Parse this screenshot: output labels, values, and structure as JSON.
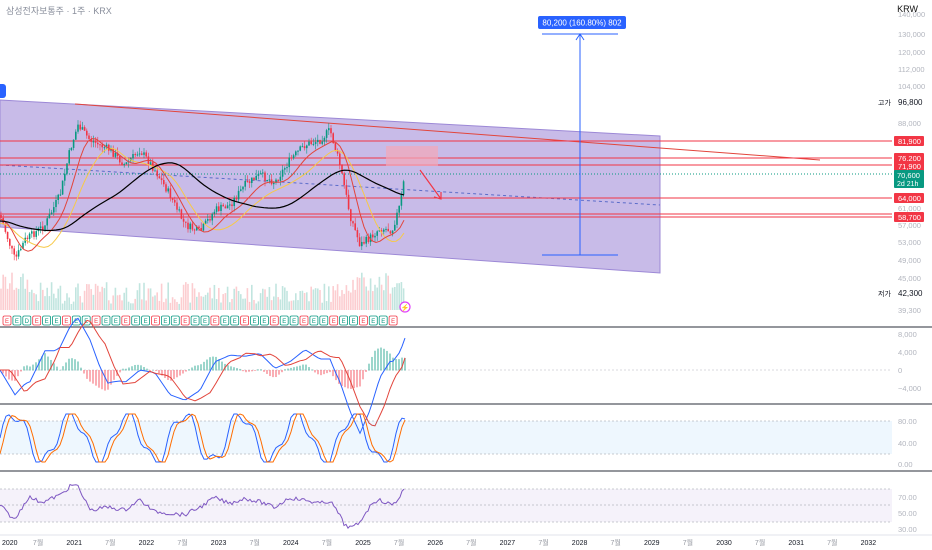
{
  "header": {
    "symbol_title": "삼성전자보통주 · 1주 · KRX",
    "currency": "KRW"
  },
  "price_scale": {
    "ticks": [
      "140,000",
      "130,000",
      "120,000",
      "112,000",
      "104,000",
      "88,000",
      "78,000",
      "70,000",
      "64,000",
      "61,000",
      "57,000",
      "53,000",
      "49,000",
      "45,000",
      "39,300"
    ],
    "high_label": "고가",
    "high_value": "96,800",
    "low_label": "저가",
    "low_value": "42,300",
    "level_labels": [
      {
        "value": "81,900",
        "color": "#f23645"
      },
      {
        "value": "76,200",
        "color": "#f23645"
      },
      {
        "value": "71,900",
        "color": "#f23645"
      },
      {
        "value": "64,000",
        "color": "#f23645"
      },
      {
        "value": "58,700",
        "color": "#f23645"
      }
    ],
    "current_price": "70,600",
    "countdown": "2d 21h",
    "current_color": "#089981"
  },
  "measure": {
    "label": "80,200 (160.80%) 802"
  },
  "macd_scale": [
    "8,000",
    "4,000",
    "0",
    "−4,000"
  ],
  "stoch_scale": [
    "80.00",
    "40.00",
    "0.00"
  ],
  "rsi_scale": [
    "70.00",
    "50.00",
    "30.00"
  ],
  "time_axis": [
    "2020",
    "7월",
    "2021",
    "7월",
    "2022",
    "7월",
    "2023",
    "7월",
    "2024",
    "7월",
    "2025",
    "7월",
    "2026",
    "7월",
    "2027",
    "7월",
    "2028",
    "7월",
    "2029",
    "7월",
    "2030",
    "7월",
    "2031",
    "7월",
    "2032"
  ],
  "event_markers": [
    "E",
    "E",
    "D",
    "E",
    "E",
    "E",
    "E",
    "E",
    "E",
    "E",
    "E",
    "E",
    "E",
    "E",
    "E",
    "E",
    "E",
    "E",
    "E",
    "E",
    "E",
    "E",
    "E",
    "E",
    "E",
    "E",
    "E",
    "E",
    "E",
    "E",
    "E",
    "E",
    "E",
    "E",
    "E",
    "E",
    "E",
    "E",
    "E",
    "E"
  ],
  "colors": {
    "channel_fill": "#b6a4e0",
    "ma_black": "#000000",
    "ma_red": "#e2453c",
    "ma_yellow": "#f7c948",
    "up": "#089981",
    "down": "#f23645",
    "measure_blue": "#2962ff"
  }
}
